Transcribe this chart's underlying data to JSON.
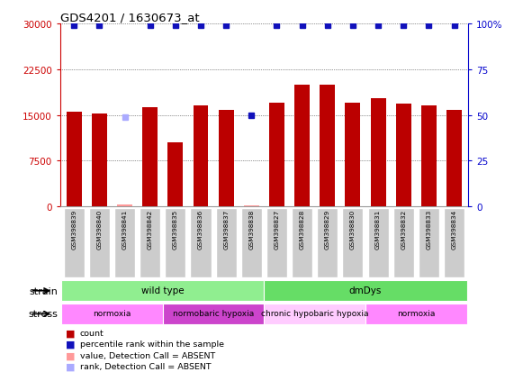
{
  "title": "GDS4201 / 1630673_at",
  "samples": [
    "GSM398839",
    "GSM398840",
    "GSM398841",
    "GSM398842",
    "GSM398835",
    "GSM398836",
    "GSM398837",
    "GSM398838",
    "GSM398827",
    "GSM398828",
    "GSM398829",
    "GSM398830",
    "GSM398831",
    "GSM398832",
    "GSM398833",
    "GSM398834"
  ],
  "counts": [
    15500,
    15200,
    300,
    16200,
    10500,
    16500,
    15800,
    200,
    17000,
    20000,
    20000,
    17000,
    17800,
    16800,
    16500,
    15800
  ],
  "ranks": [
    99,
    99,
    49,
    99,
    99,
    99,
    99,
    50,
    99,
    99,
    99,
    99,
    99,
    99,
    99,
    99
  ],
  "absent_count_indices": [
    2,
    7
  ],
  "absent_rank_indices": [
    2
  ],
  "ylim_left": [
    0,
    30000
  ],
  "ylim_right": [
    0,
    100
  ],
  "yticks_left": [
    0,
    7500,
    15000,
    22500,
    30000
  ],
  "yticks_right": [
    0,
    25,
    50,
    75,
    100
  ],
  "strain_groups": [
    {
      "label": "wild type",
      "start": 0,
      "end": 8,
      "color": "#90EE90"
    },
    {
      "label": "dmDys",
      "start": 8,
      "end": 16,
      "color": "#66DD66"
    }
  ],
  "stress_groups": [
    {
      "label": "normoxia",
      "start": 0,
      "end": 4,
      "color": "#FF88FF"
    },
    {
      "label": "normobaric hypoxia",
      "start": 4,
      "end": 8,
      "color": "#CC44CC"
    },
    {
      "label": "chronic hypobaric hypoxia",
      "start": 8,
      "end": 12,
      "color": "#FFCCFF"
    },
    {
      "label": "normoxia",
      "start": 12,
      "end": 16,
      "color": "#FF88FF"
    }
  ],
  "bar_color": "#BB0000",
  "absent_bar_color": "#FF9999",
  "blue_dot_color": "#1111BB",
  "absent_rank_color": "#AAAAFF",
  "grid_color": "#333333",
  "left_axis_color": "#CC0000",
  "right_axis_color": "#0000CC",
  "background_main": "#FFFFFF",
  "background_sample": "#CCCCCC",
  "legend_items": [
    {
      "color": "#BB0000",
      "label": "count"
    },
    {
      "color": "#1111BB",
      "label": "percentile rank within the sample"
    },
    {
      "color": "#FF9999",
      "label": "value, Detection Call = ABSENT"
    },
    {
      "color": "#AAAAFF",
      "label": "rank, Detection Call = ABSENT"
    }
  ]
}
